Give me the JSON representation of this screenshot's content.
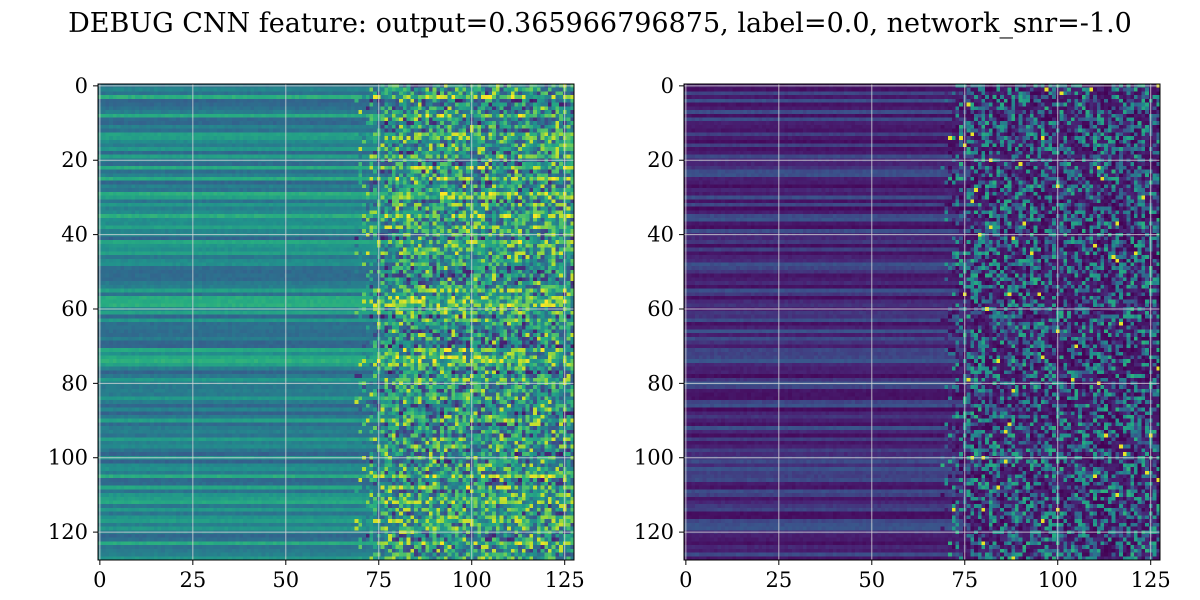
{
  "title": "DEBUG CNN feature: output=0.365966796875, label=0.0, network_snr=-1.0",
  "chart_data": [
    {
      "type": "heatmap",
      "colormap": "viridis",
      "rows": 128,
      "cols": 128,
      "xlim": [
        0,
        127
      ],
      "ylim": [
        127,
        0
      ],
      "xticks": [
        0,
        25,
        50,
        75,
        100,
        125
      ],
      "yticks": [
        0,
        20,
        40,
        60,
        80,
        100,
        120
      ],
      "grid": true,
      "pattern": "smooth horizontal bands on left half, noisy speckle beyond column 70; mid-level (teal/green) intensity"
    },
    {
      "type": "heatmap",
      "colormap": "viridis",
      "rows": 128,
      "cols": 128,
      "xlim": [
        0,
        127
      ],
      "ylim": [
        127,
        0
      ],
      "xticks": [
        0,
        25,
        50,
        75,
        100,
        125
      ],
      "yticks": [
        0,
        20,
        40,
        60,
        80,
        100,
        120
      ],
      "grid": true,
      "pattern": "mostly dark purple horizontal bands on left, sparse bright speckle beyond column 70"
    }
  ]
}
